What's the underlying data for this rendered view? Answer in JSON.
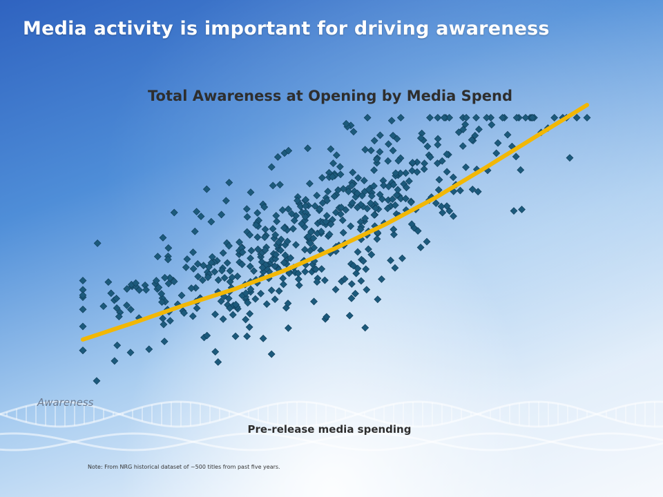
{
  "slide": {
    "title": "Media activity is important for driving awareness",
    "note": "Note: From NRG historical dataset of ~500 titles from past five years."
  },
  "colors": {
    "point": "#1c5a7c",
    "trend": "#f2b705",
    "title_text": "#ffffff"
  },
  "chart_data": {
    "type": "scatter",
    "title": "Total Awareness at Opening by Media Spend",
    "xlabel": "Pre-release media spending",
    "ylabel": "Awareness",
    "grid": false,
    "legend": "none",
    "xlim": [
      0,
      100
    ],
    "ylim": [
      0,
      100
    ],
    "series": [
      {
        "marker": "diamond",
        "seed": 7,
        "count": 560
      }
    ],
    "trendline": {
      "x": [
        0,
        10,
        20,
        30,
        40,
        50,
        60,
        70,
        80,
        90,
        100
      ],
      "y": [
        16.6,
        22.5,
        28.7,
        34.4,
        41,
        48.8,
        57.3,
        66.8,
        77.5,
        88.5,
        99.5
      ]
    }
  }
}
